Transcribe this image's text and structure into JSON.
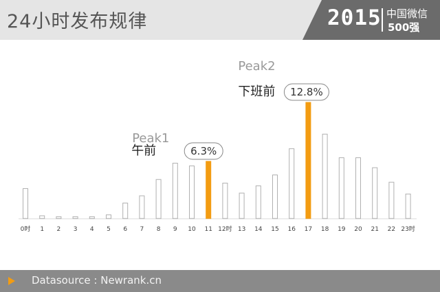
{
  "header": {
    "title": "24小时发布规律",
    "brand_year": "2015",
    "brand_line1": "中国微信",
    "brand_line2": "500强"
  },
  "footer": {
    "source": "Datasource : Newrank.cn"
  },
  "colors": {
    "highlight": "#f39c12",
    "bar_outline": "#b0b0b0",
    "header_bg": "#e5e5e5",
    "brand_bg": "#6b6b6b",
    "footer_bg": "#8a8a8a"
  },
  "chart_data": {
    "type": "bar",
    "categories": [
      "0时",
      "1",
      "2",
      "3",
      "4",
      "5",
      "6",
      "7",
      "8",
      "9",
      "10",
      "11",
      "12时",
      "13",
      "14",
      "15",
      "16",
      "17",
      "18",
      "19",
      "20",
      "21",
      "22",
      "23时"
    ],
    "values": [
      3.3,
      0.3,
      0.2,
      0.2,
      0.2,
      0.4,
      1.7,
      2.5,
      4.3,
      6.1,
      5.8,
      6.3,
      3.9,
      2.8,
      3.6,
      4.8,
      7.7,
      12.8,
      9.3,
      6.7,
      6.7,
      5.6,
      4.0,
      2.7
    ],
    "highlighted": [
      11,
      17
    ],
    "annotations": [
      {
        "index": 11,
        "peak": "Peak1",
        "label": "午前",
        "value_text": "6.3%"
      },
      {
        "index": 17,
        "peak": "Peak2",
        "label": "下班前",
        "value_text": "12.8%"
      }
    ]
  }
}
